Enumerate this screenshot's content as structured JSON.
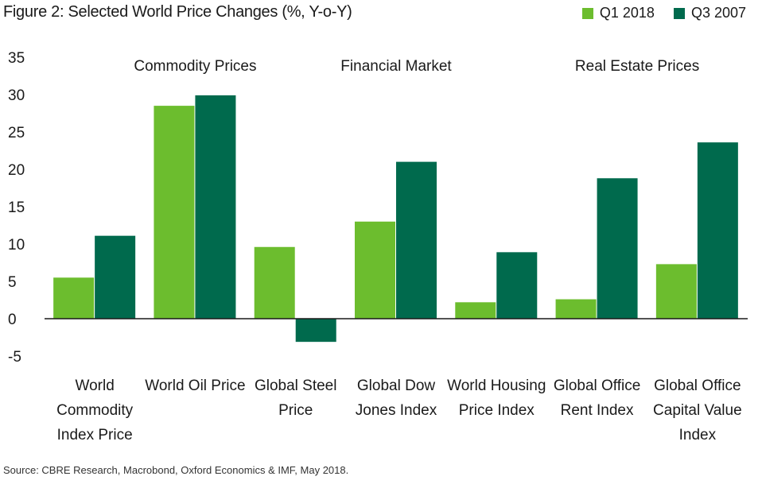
{
  "chart_data": {
    "type": "bar",
    "title": "Figure 2: Selected World Price Changes (%, Y-o-Y)",
    "categories": [
      [
        "World",
        "Commodity",
        "Index Price"
      ],
      [
        "World Oil Price"
      ],
      [
        "Global Steel",
        "Price"
      ],
      [
        "Global Dow",
        "Jones Index"
      ],
      [
        "World Housing",
        "Price Index"
      ],
      [
        "Global Office",
        "Rent Index"
      ],
      [
        "Global Office",
        "Capital Value",
        "Index"
      ]
    ],
    "series": [
      {
        "name": "Q1 2018",
        "color": "#6cbd2e",
        "values": [
          5.5,
          28.5,
          9.6,
          13.0,
          2.2,
          2.6,
          7.3
        ]
      },
      {
        "name": "Q3 2007",
        "color": "#006a4d",
        "values": [
          11.1,
          29.9,
          -3.1,
          21.0,
          8.9,
          18.8,
          23.6
        ]
      }
    ],
    "group_labels": [
      {
        "text": "Commodity Prices",
        "anchor_category": 1
      },
      {
        "text": "Financial Market",
        "anchor_category": 3
      },
      {
        "text": "Real Estate Prices",
        "anchor_category": 5.4
      }
    ],
    "ylim": [
      -5,
      35
    ],
    "yticks": [
      35,
      30,
      25,
      20,
      15,
      10,
      5,
      0,
      -5
    ],
    "grid": false,
    "legend": "top-right"
  },
  "source": "Source: CBRE Research, Macrobond, Oxford Economics & IMF, May 2018."
}
